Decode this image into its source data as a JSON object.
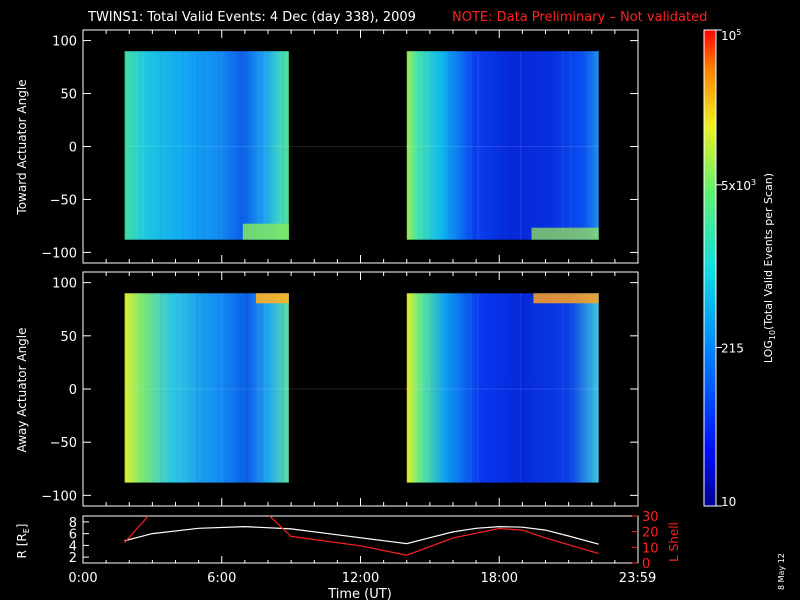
{
  "title": "TWINS1: Total Valid Events:  4 Dec (day 338), 2009",
  "note": "NOTE: Data Preliminary – Not validated",
  "date_stamp": "8 May 12",
  "colors": {
    "background": "#000000",
    "foreground": "#ffffff",
    "note": "#ff2020",
    "lshell_line": "#ff2020",
    "r_line": "#ffffff"
  },
  "chart_data": [
    {
      "type": "heatmap",
      "panel": "toward",
      "ylabel": "Toward Actuator Angle",
      "ylim": [
        -110,
        110
      ],
      "yticks": [
        100,
        50,
        0,
        -50,
        -100
      ],
      "ytick_labels": [
        "100",
        "50",
        "0",
        "−50",
        "−100"
      ],
      "xlim_hours": [
        0,
        24
      ],
      "data_blocks_hours": [
        [
          1.8,
          8.9
        ],
        [
          14.0,
          22.3
        ]
      ],
      "angle_range": [
        -88,
        90
      ]
    },
    {
      "type": "heatmap",
      "panel": "away",
      "ylabel": "Away Actuator Angle",
      "ylim": [
        -110,
        110
      ],
      "yticks": [
        100,
        50,
        0,
        -50,
        -100
      ],
      "ytick_labels": [
        "100",
        "50",
        "0",
        "−50",
        "−100"
      ],
      "xlim_hours": [
        0,
        24
      ],
      "data_blocks_hours": [
        [
          1.8,
          8.9
        ],
        [
          14.0,
          22.3
        ]
      ],
      "angle_range": [
        -88,
        90
      ]
    },
    {
      "type": "line",
      "panel": "orbit",
      "ylabel_left": "R [R",
      "ylabel_left_sub": "E",
      "ylabel_left_end": "]",
      "ylabel_right": "L Shell",
      "ylim_left": [
        1,
        9
      ],
      "ylim_right": [
        0,
        30
      ],
      "yticks_left": [
        8,
        6,
        4,
        2
      ],
      "yticks_right": [
        30,
        20,
        10,
        0
      ],
      "xlabel": "Time (UT)",
      "xticks_hours": [
        0,
        6,
        12,
        18,
        23.98
      ],
      "xtick_labels": [
        "0:00",
        "6:00",
        "12:00",
        "18:00",
        "23:59"
      ],
      "series": [
        {
          "axis": "left",
          "color": "#ffffff",
          "x": [
            1.8,
            3,
            5,
            7,
            9,
            11,
            13,
            14,
            15,
            16,
            17,
            18,
            19,
            20,
            21,
            22.3
          ],
          "y": [
            4.8,
            6.0,
            6.9,
            7.2,
            6.8,
            5.8,
            4.8,
            4.3,
            5.3,
            6.3,
            6.9,
            7.2,
            7.1,
            6.6,
            5.6,
            4.2
          ]
        },
        {
          "axis": "right",
          "color": "#ff2020",
          "x": [
            1.8,
            3.3,
            7.5,
            9,
            12,
            14,
            16,
            18,
            19,
            20,
            22.3
          ],
          "y": [
            13,
            38,
            38,
            17,
            11,
            5,
            16,
            22,
            21,
            16,
            6
          ]
        }
      ]
    }
  ],
  "colorbar": {
    "label_main": "LOG",
    "label_sub": "10",
    "label_rest": "(Total Valid  Events per Scan)",
    "range": [
      10,
      100000
    ],
    "tick_values": [
      100000,
      5000,
      215,
      10
    ],
    "ticks": [
      {
        "label": "10",
        "sup": "5"
      },
      {
        "label": "5x10",
        "sup": "3"
      },
      {
        "label": "215",
        "sup": ""
      },
      {
        "label": "10",
        "sup": ""
      }
    ]
  }
}
